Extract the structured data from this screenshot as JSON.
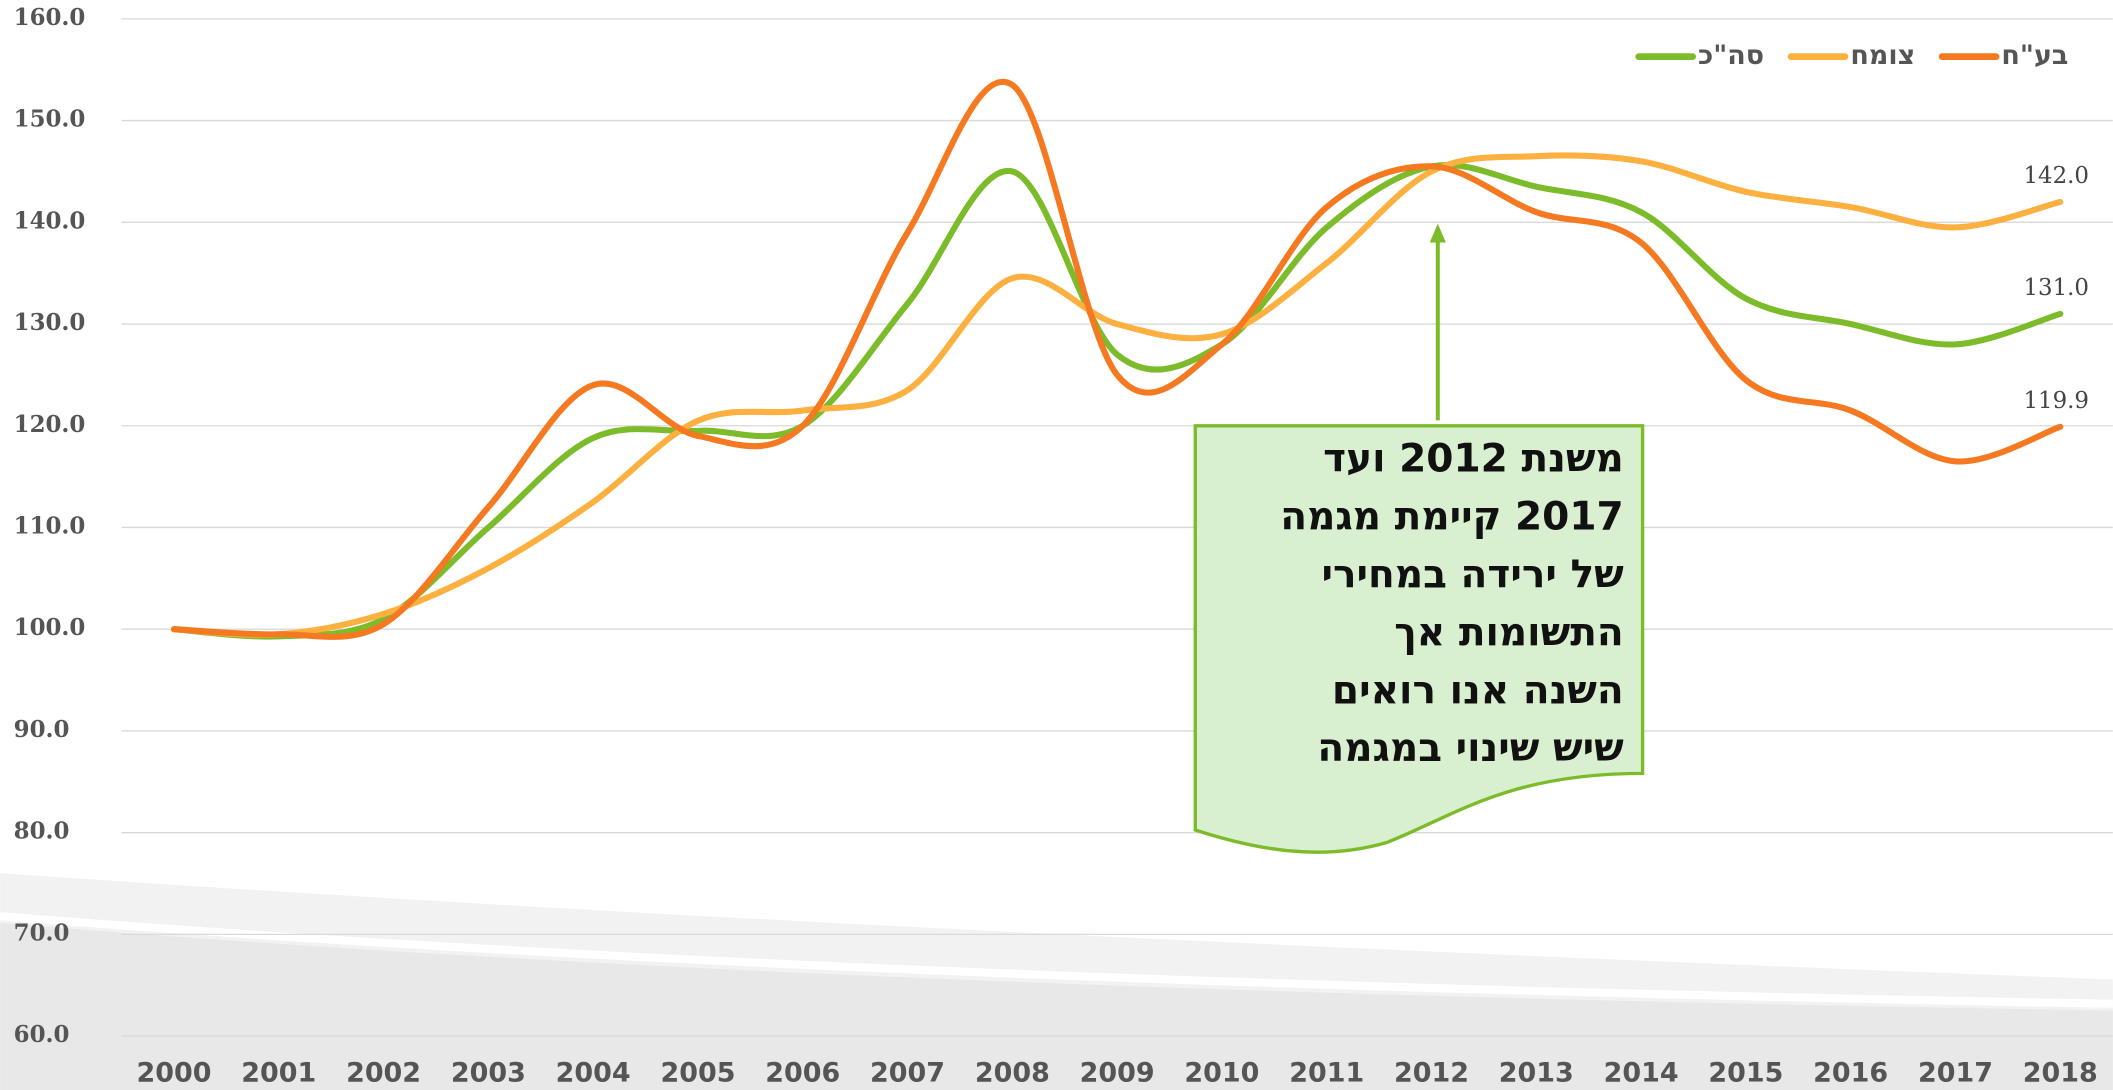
{
  "chart_data": {
    "type": "line",
    "categories": [
      "2000",
      "2001",
      "2002",
      "2003",
      "2004",
      "2005",
      "2006",
      "2007",
      "2008",
      "2009",
      "2010",
      "2011",
      "2012",
      "2013",
      "2014",
      "2015",
      "2016",
      "2017",
      "2018"
    ],
    "series": [
      {
        "name": "בע\"ח",
        "color": "#f47920",
        "values": [
          100,
          99.5,
          100.5,
          112,
          124,
          119,
          120,
          139,
          153.5,
          125,
          128,
          141.5,
          145.5,
          141,
          138,
          124.5,
          121.5,
          116.5,
          119.9
        ],
        "value_labels": [
          null,
          null,
          null,
          null,
          null,
          null,
          null,
          null,
          null,
          null,
          null,
          null,
          null,
          null,
          null,
          null,
          null,
          null,
          "119.9"
        ]
      },
      {
        "name": "צומח",
        "color": "#fbb040",
        "values": [
          100,
          99.5,
          101.5,
          106,
          112.5,
          120.5,
          121.5,
          123.5,
          134.5,
          130,
          129,
          136,
          145,
          146.5,
          146,
          143,
          141.5,
          139.5,
          142
        ],
        "value_labels": [
          null,
          null,
          null,
          null,
          null,
          null,
          null,
          null,
          null,
          null,
          null,
          null,
          null,
          null,
          null,
          null,
          null,
          null,
          "142.0"
        ]
      },
      {
        "name": "סה\"כ",
        "color": "#7cbb2a",
        "values": [
          100,
          99.3,
          101,
          110,
          118.8,
          119.5,
          120,
          132,
          145,
          127,
          128,
          139.5,
          145.5,
          143.5,
          141,
          132.5,
          130,
          128,
          131
        ],
        "value_labels": [
          null,
          null,
          null,
          null,
          null,
          null,
          null,
          null,
          null,
          null,
          null,
          null,
          null,
          null,
          null,
          null,
          null,
          null,
          "131.0"
        ]
      }
    ],
    "ylim": [
      60,
      160
    ],
    "yticks": [
      {
        "value": 60,
        "label": "60.0"
      },
      {
        "value": 70,
        "label": "70.0"
      },
      {
        "value": 80,
        "label": "80.0"
      },
      {
        "value": 90,
        "label": "90.0"
      },
      {
        "value": 100,
        "label": "100.0"
      },
      {
        "value": 110,
        "label": "110.0"
      },
      {
        "value": 120,
        "label": "120.0"
      },
      {
        "value": 130,
        "label": "130.0"
      },
      {
        "value": 140,
        "label": "140.0"
      },
      {
        "value": 150,
        "label": "150.0"
      },
      {
        "value": 160,
        "label": "160.0"
      }
    ],
    "grid": true,
    "legend": "top-right",
    "annotation": {
      "lines": [
        "משנת 2012 ועד",
        "2017 קיימת מגמה",
        "של ירידה במחירי",
        "התשומות אך",
        "השנה אנו רואים",
        "שיש שינוי במגמה"
      ]
    }
  }
}
